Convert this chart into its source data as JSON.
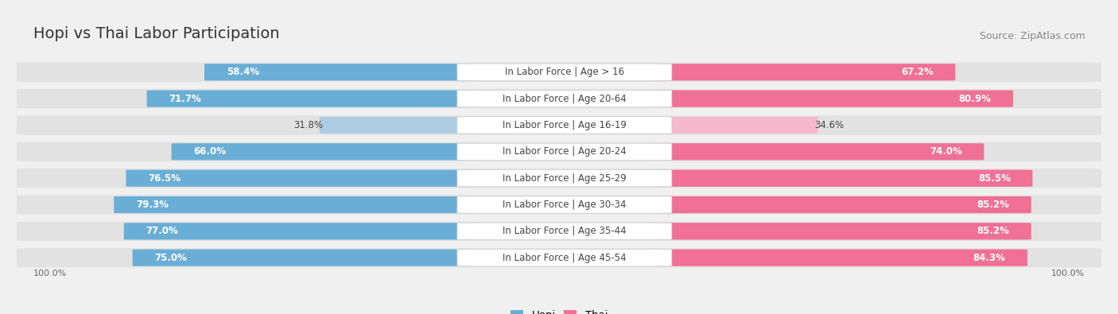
{
  "title": "Hopi vs Thai Labor Participation",
  "source": "Source: ZipAtlas.com",
  "categories": [
    "In Labor Force | Age > 16",
    "In Labor Force | Age 20-64",
    "In Labor Force | Age 16-19",
    "In Labor Force | Age 20-24",
    "In Labor Force | Age 25-29",
    "In Labor Force | Age 30-34",
    "In Labor Force | Age 35-44",
    "In Labor Force | Age 45-54"
  ],
  "hopi_values": [
    58.4,
    71.7,
    31.8,
    66.0,
    76.5,
    79.3,
    77.0,
    75.0
  ],
  "thai_values": [
    67.2,
    80.9,
    34.6,
    74.0,
    85.5,
    85.2,
    85.2,
    84.3
  ],
  "hopi_color": "#6aaed6",
  "thai_color": "#f07097",
  "hopi_color_light": "#aecde3",
  "thai_color_light": "#f5b8cc",
  "background_color": "#f0f0f0",
  "row_bg_color": "#e2e2e2",
  "legend_hopi": "Hopi",
  "legend_thai": "Thai",
  "title_fontsize": 14,
  "source_fontsize": 9,
  "label_fontsize": 8.5,
  "value_fontsize": 8.5
}
